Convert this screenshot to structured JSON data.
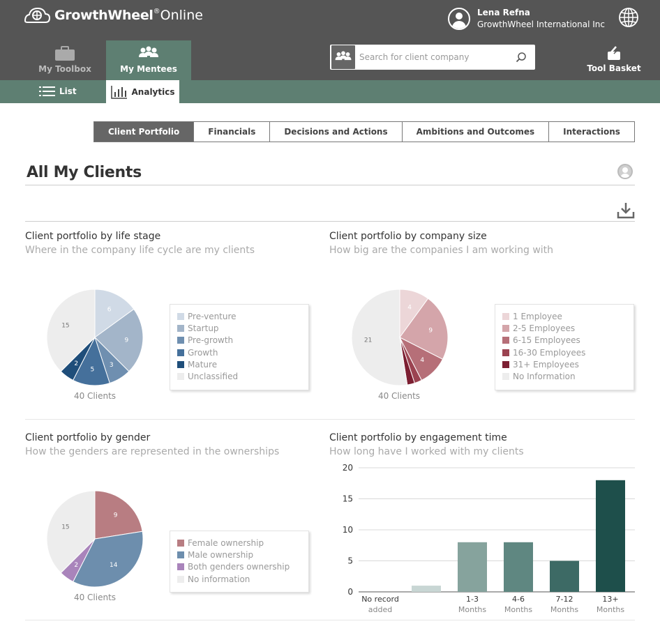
{
  "header": {
    "brand": "GrowthWheel",
    "brand_reg": "®",
    "brand_suffix": "Online",
    "user_name": "Lena Refna",
    "user_org": "GrowthWheel International Inc"
  },
  "nav": {
    "toolbox": "My Toolbox",
    "mentees": "My Mentees",
    "tool_basket": "Tool Basket"
  },
  "search": {
    "placeholder": "Search for client company"
  },
  "subnav": {
    "list": "List",
    "analytics": "Analytics"
  },
  "section_tabs": [
    "Client Portfolio",
    "Financials",
    "Decisions and Actions",
    "Ambitions and Outcomes",
    "Interactions"
  ],
  "page": {
    "title": "All My Clients"
  },
  "charts": {
    "life_stage": {
      "title": "Client portfolio by life stage",
      "subtitle": "Where in the company life cycle are my clients",
      "caption": "40 Clients"
    },
    "company_size": {
      "title": "Client portfolio by company size",
      "subtitle": "How big are the companies I am working with",
      "caption": "40 Clients"
    },
    "gender": {
      "title": "Client portfolio by gender",
      "subtitle": "How the genders are represented in the ownerships",
      "caption": "40 Clients"
    },
    "engagement": {
      "title": "Client portfolio by engagement time",
      "subtitle": "How long have I worked with my clients"
    }
  },
  "chart_data": [
    {
      "type": "pie",
      "categories": [
        "Pre-venture",
        "Startup",
        "Pre-growth",
        "Growth",
        "Mature",
        "Unclassified"
      ],
      "values": [
        6,
        9,
        3,
        5,
        2,
        15
      ],
      "colors": [
        "#d0dae6",
        "#a3b5c9",
        "#6f8fb0",
        "#45709b",
        "#1f4e7a",
        "#ededed"
      ]
    },
    {
      "type": "pie",
      "categories": [
        "1 Employee",
        "2-5 Employees",
        "6-15 Employees",
        "16-30 Employees",
        "31+ Employees",
        "No Information"
      ],
      "values": [
        4,
        9,
        4,
        1,
        1,
        21
      ],
      "colors": [
        "#ecd6d8",
        "#d4a5aa",
        "#b66f78",
        "#9b4351",
        "#7c1f32",
        "#ededed"
      ]
    },
    {
      "type": "pie",
      "categories": [
        "Female ownership",
        "Male ownership",
        "Both genders ownership",
        "No information"
      ],
      "values": [
        9,
        14,
        2,
        15
      ],
      "colors": [
        "#b87d82",
        "#6d8ead",
        "#a984bb",
        "#ededed"
      ]
    },
    {
      "type": "bar",
      "categories": [
        "No record added",
        "",
        "1-3 Months",
        "4-6 Months",
        "7-12 Months",
        "13+ Months"
      ],
      "category_lines": [
        [
          "No record",
          "added"
        ],
        [
          "",
          ""
        ],
        [
          "1-3",
          "Months"
        ],
        [
          "4-6",
          "Months"
        ],
        [
          "7-12",
          "Months"
        ],
        [
          "13+",
          "Months"
        ]
      ],
      "values": [
        0,
        1,
        8,
        8,
        5,
        18
      ],
      "colors": [
        "#d3dedc",
        "#c8d6d4",
        "#86a39d",
        "#5f8781",
        "#3d6a65",
        "#1e4f4b"
      ],
      "ylim": [
        0,
        20
      ],
      "yticks": [
        0,
        5,
        10,
        15,
        20
      ]
    }
  ]
}
